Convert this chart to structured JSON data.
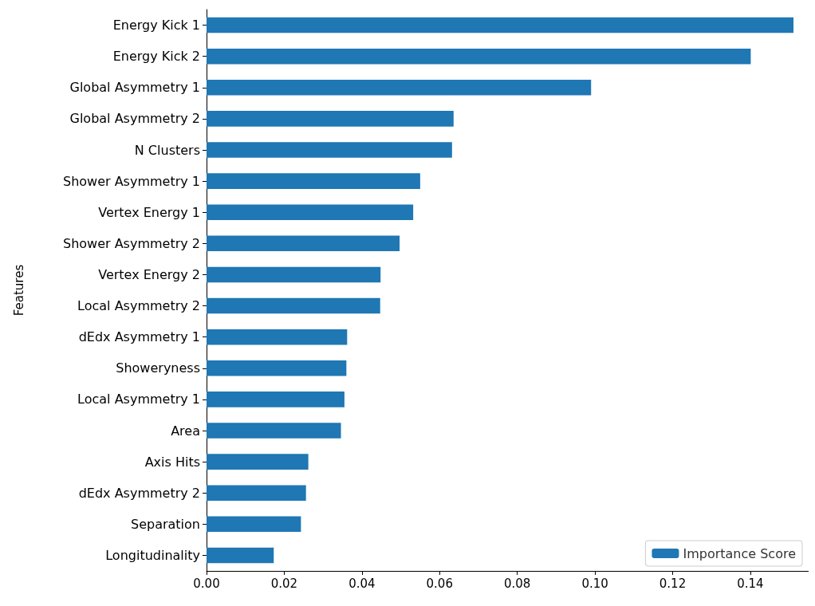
{
  "chart_data": {
    "type": "bar",
    "orientation": "horizontal",
    "ylabel": "Features",
    "categories": [
      "Energy Kick 1",
      "Energy Kick 2",
      "Global Asymmetry 1",
      "Global Asymmetry 2",
      "N Clusters",
      "Shower Asymmetry 1",
      "Vertex Energy 1",
      "Shower Asymmetry 2",
      "Vertex Energy 2",
      "Local Asymmetry 2",
      "dEdx Asymmetry 1",
      "Showeryness",
      "Local Asymmetry 1",
      "Area",
      "Axis Hits",
      "dEdx Asymmetry 2",
      "Separation",
      "Longitudinality"
    ],
    "series": [
      {
        "name": "Importance Score",
        "color": "#1f77b4",
        "values": [
          0.1511,
          0.1401,
          0.099,
          0.0636,
          0.0632,
          0.055,
          0.0532,
          0.0497,
          0.0448,
          0.0447,
          0.0362,
          0.036,
          0.0355,
          0.0346,
          0.0262,
          0.0256,
          0.0243,
          0.0173
        ]
      }
    ],
    "xlim": [
      0,
      0.155
    ],
    "xticks": [
      {
        "value": 0,
        "label": "0.00"
      },
      {
        "value": 0.02,
        "label": "0.02"
      },
      {
        "value": 0.04,
        "label": "0.04"
      },
      {
        "value": 0.06,
        "label": "0.06"
      },
      {
        "value": 0.08,
        "label": "0.08"
      },
      {
        "value": 0.1,
        "label": "0.10"
      },
      {
        "value": 0.12,
        "label": "0.12"
      },
      {
        "value": 0.14,
        "label": "0.14"
      }
    ],
    "grid": false,
    "legend": "bottom right"
  }
}
